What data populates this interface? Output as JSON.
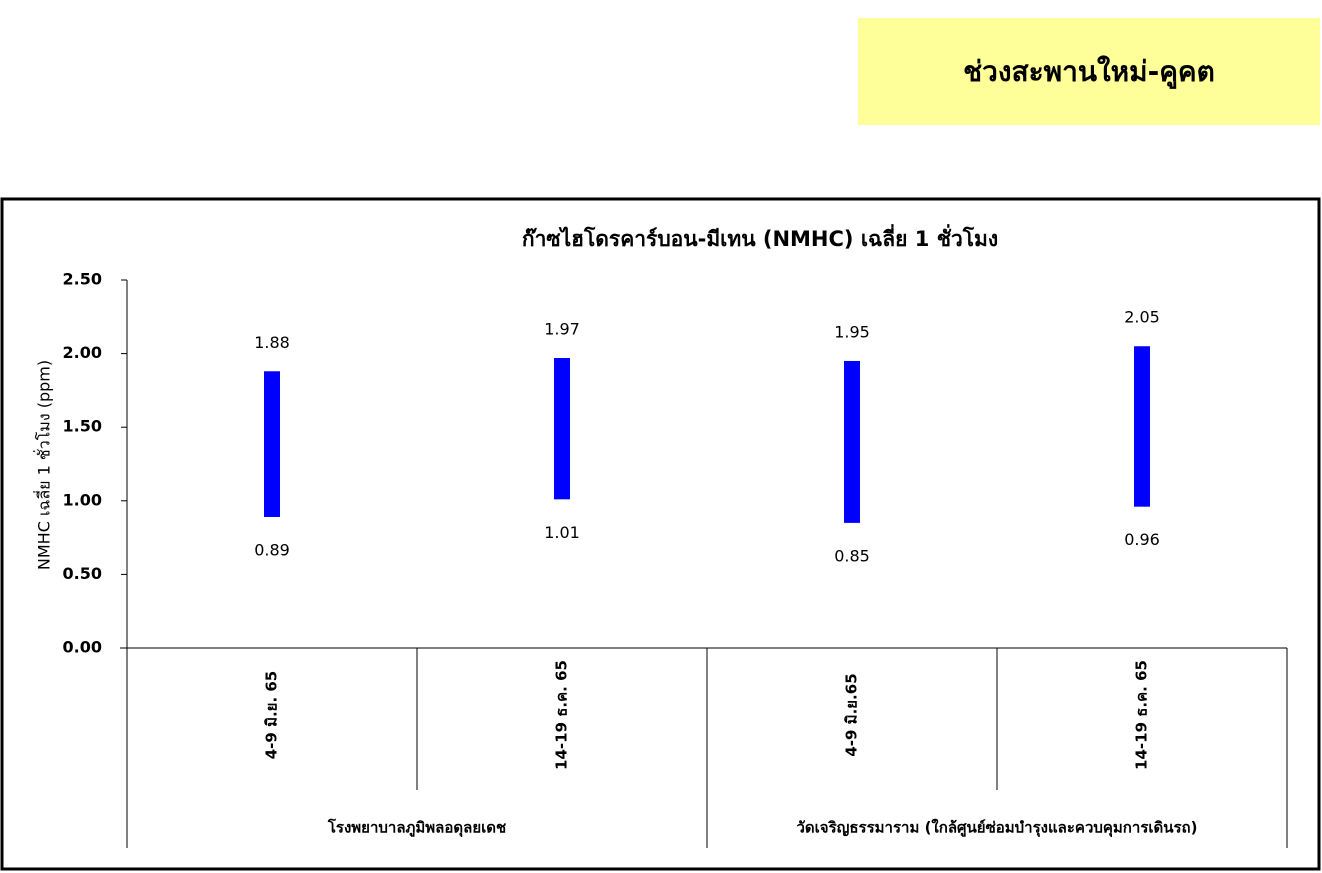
{
  "header": {
    "title": "ช่วงสะพานใหม่-คูคต"
  },
  "chart_data": {
    "type": "range_bar",
    "title": "ก๊าซไฮโดรคาร์บอน-มีเทน (NMHC) เฉลี่ย 1 ชั่วโมง",
    "y_label": "NMHC เฉลี่ย 1 ชั่วโมง (ppm)",
    "groups": [
      {
        "name": "โรงพยาบาลภูมิพลอดุลยเดช",
        "categories": [
          "4-9 มิ.ย. 65",
          "14-19 ธ.ค. 65"
        ]
      },
      {
        "name": "วัดเจริญธรรมาราม (ใกล้ศูนย์ซ่อมบำรุงและควบคุมการเดินรถ)",
        "categories": [
          "4-9 มิ.ย.65",
          "14-19 ธ.ค. 65"
        ]
      }
    ],
    "low": [
      0.89,
      1.01,
      0.85,
      0.96
    ],
    "high": [
      1.88,
      1.97,
      1.95,
      2.05
    ],
    "color": "#0000ff",
    "ylim": [
      0,
      2.5
    ],
    "yticks": [
      {
        "value": 0,
        "label": "0.00"
      },
      {
        "value": 0.5,
        "label": "0.50"
      },
      {
        "value": 1,
        "label": "1.00"
      },
      {
        "value": 1.5,
        "label": "1.50"
      },
      {
        "value": 2,
        "label": "2.00"
      },
      {
        "value": 2.5,
        "label": "2.50"
      }
    ]
  }
}
